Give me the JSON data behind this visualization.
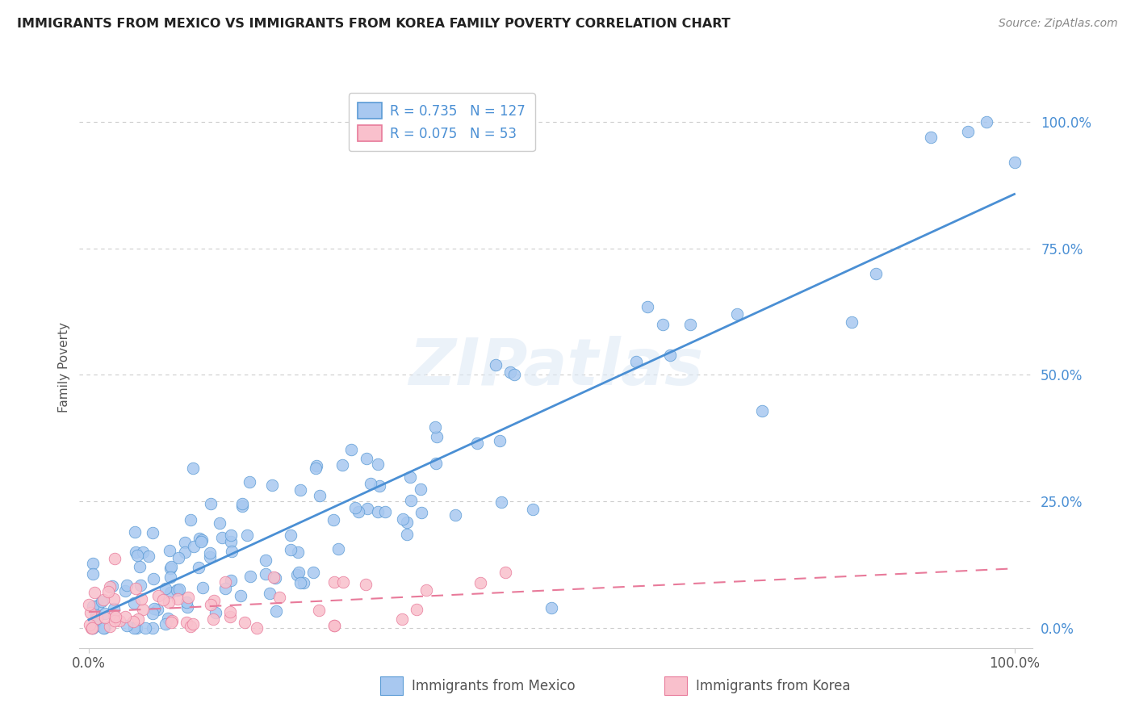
{
  "title": "IMMIGRANTS FROM MEXICO VS IMMIGRANTS FROM KOREA FAMILY POVERTY CORRELATION CHART",
  "source": "Source: ZipAtlas.com",
  "ylabel": "Family Poverty",
  "ytick_labels": [
    "0.0%",
    "25.0%",
    "50.0%",
    "75.0%",
    "100.0%"
  ],
  "ytick_values": [
    0.0,
    0.25,
    0.5,
    0.75,
    1.0
  ],
  "xtick_left": "0.0%",
  "xtick_right": "100.0%",
  "legend_mexico": "Immigrants from Mexico",
  "legend_korea": "Immigrants from Korea",
  "R_mexico": 0.735,
  "N_mexico": 127,
  "R_korea": 0.075,
  "N_korea": 53,
  "color_mexico_fill": "#a8c8f0",
  "color_mexico_edge": "#5b9bd5",
  "color_korea_fill": "#f9c0cc",
  "color_korea_edge": "#e87a9a",
  "color_mexico_line": "#4a8fd4",
  "color_korea_line": "#e87a9a",
  "color_yticklabel": "#4a8fd4",
  "watermark": "ZIPatlas",
  "background_color": "#ffffff",
  "grid_color": "#cccccc",
  "title_color": "#222222",
  "source_color": "#888888",
  "ylabel_color": "#555555"
}
